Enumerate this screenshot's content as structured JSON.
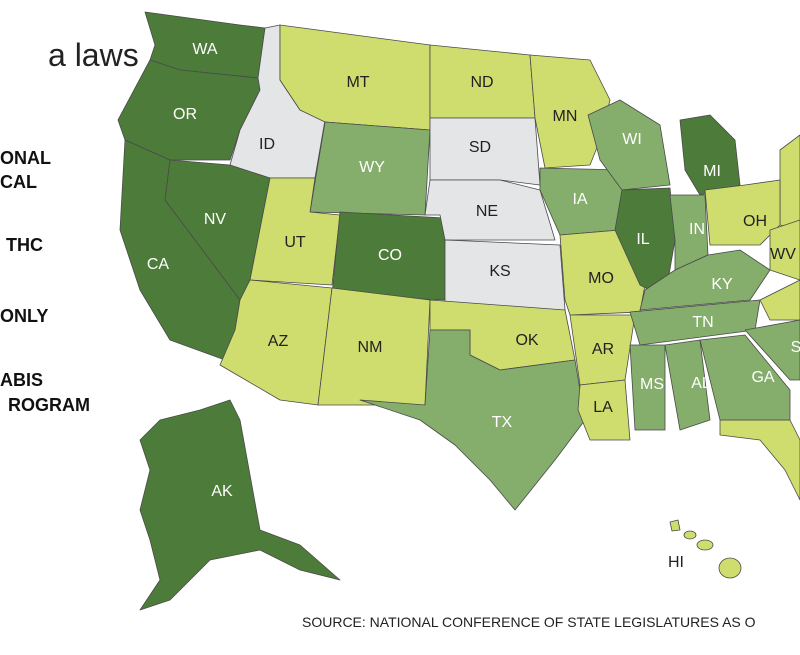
{
  "title": "a laws",
  "legend": [
    [
      "ONAL",
      "CAL"
    ],
    [
      "THC"
    ],
    [
      "ONLY"
    ],
    [
      "ABIS",
      "ROGRAM"
    ]
  ],
  "states": [
    {
      "label": "WA",
      "color": "#4d7c3a"
    },
    {
      "label": "OR",
      "color": "#4d7c3a"
    },
    {
      "label": "CA",
      "color": "#4d7c3a"
    },
    {
      "label": "NV",
      "color": "#4d7c3a"
    },
    {
      "label": "ID",
      "color": "#e4e5e7"
    },
    {
      "label": "MT",
      "color": "#cfdd6f"
    },
    {
      "label": "WY",
      "color": "#85ad6b"
    },
    {
      "label": "UT",
      "color": "#cfdd6f"
    },
    {
      "label": "CO",
      "color": "#4d7c3a"
    },
    {
      "label": "AZ",
      "color": "#cfdd6f"
    },
    {
      "label": "NM",
      "color": "#cfdd6f"
    },
    {
      "label": "ND",
      "color": "#cfdd6f"
    },
    {
      "label": "SD",
      "color": "#e4e5e7"
    },
    {
      "label": "NE",
      "color": "#e4e5e7"
    },
    {
      "label": "KS",
      "color": "#e4e5e7"
    },
    {
      "label": "OK",
      "color": "#cfdd6f"
    },
    {
      "label": "TX",
      "color": "#85ad6b"
    },
    {
      "label": "MN",
      "color": "#cfdd6f"
    },
    {
      "label": "IA",
      "color": "#85ad6b"
    },
    {
      "label": "MO",
      "color": "#cfdd6f"
    },
    {
      "label": "AR",
      "color": "#cfdd6f"
    },
    {
      "label": "LA",
      "color": "#cfdd6f"
    },
    {
      "label": "WI",
      "color": "#85ad6b"
    },
    {
      "label": "IL",
      "color": "#4d7c3a"
    },
    {
      "label": "MI",
      "color": "#4d7c3a"
    },
    {
      "label": "IN",
      "color": "#85ad6b"
    },
    {
      "label": "OH",
      "color": "#cfdd6f"
    },
    {
      "label": "KY",
      "color": "#85ad6b"
    },
    {
      "label": "TN",
      "color": "#85ad6b"
    },
    {
      "label": "MS",
      "color": "#85ad6b"
    },
    {
      "label": "AL",
      "color": "#85ad6b"
    },
    {
      "label": "GA",
      "color": "#85ad6b"
    },
    {
      "label": "WV",
      "color": "#cfdd6f"
    },
    {
      "label": "S",
      "color": "#85ad6b"
    },
    {
      "label": "AK",
      "color": "#4d7c3a"
    },
    {
      "label": "HI",
      "color": "#cfdd6f"
    }
  ],
  "source": "SOURCE: NATIONAL CONFERENCE OF STATE LEGISLATURES AS O"
}
